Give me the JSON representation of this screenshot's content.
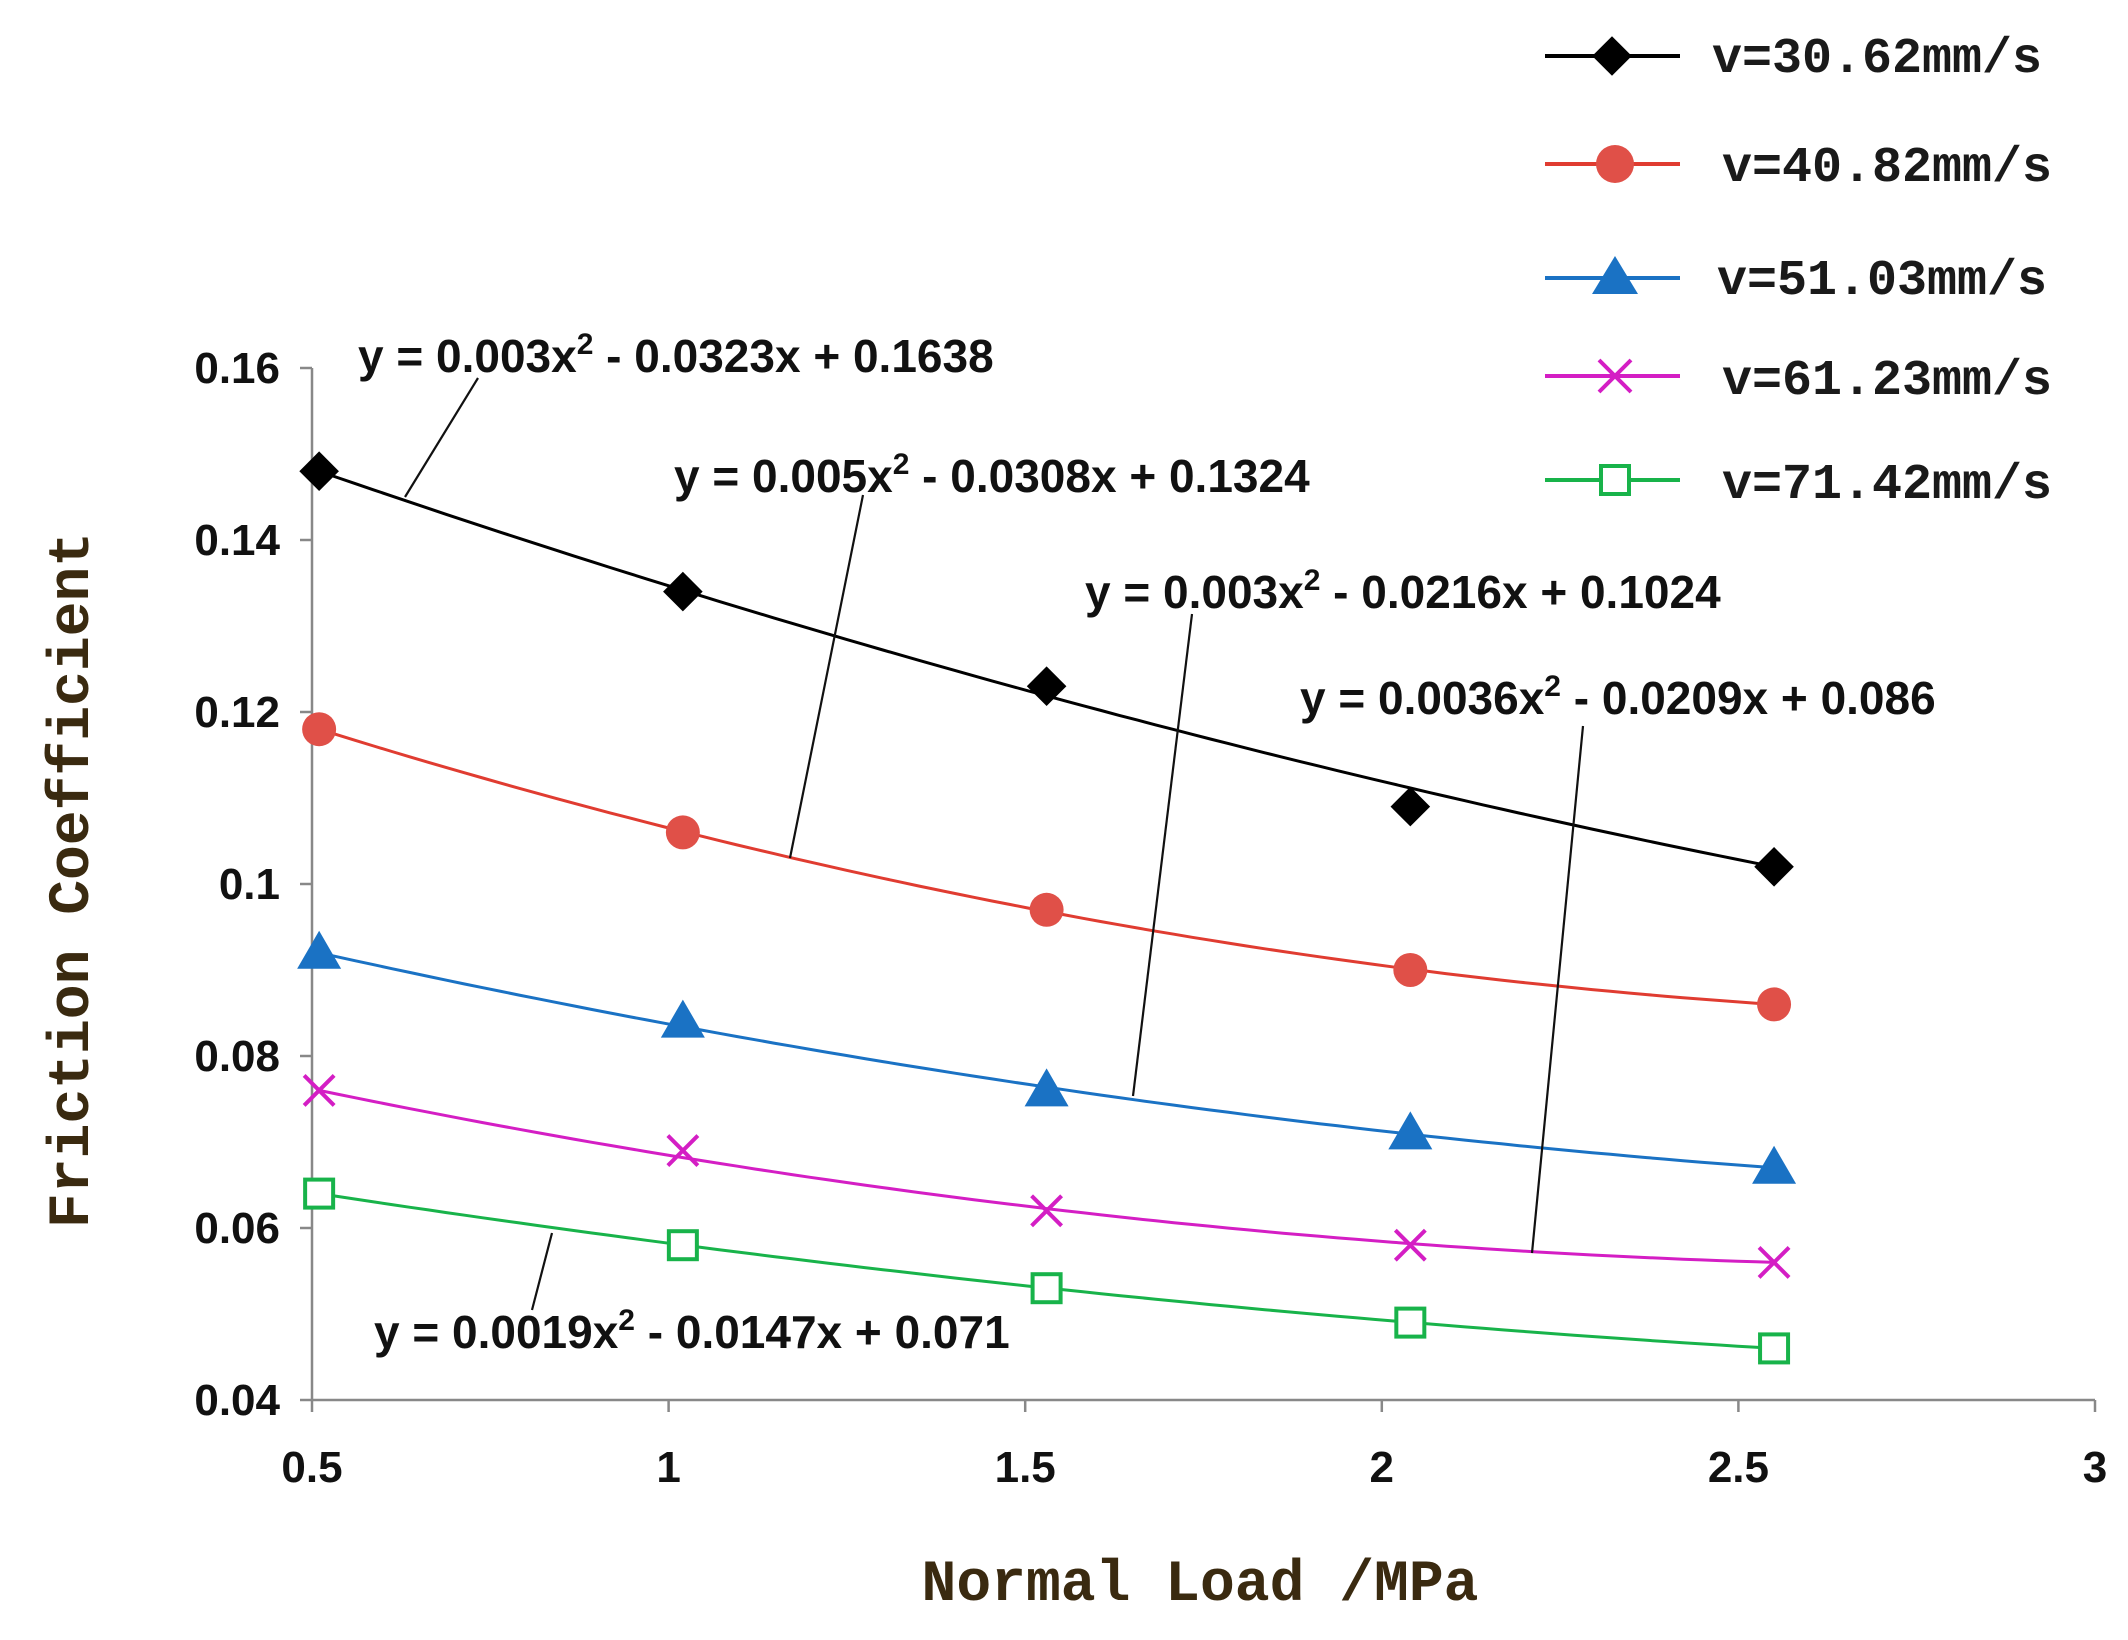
{
  "chart_data": {
    "type": "line",
    "title": "",
    "xlabel": "Normal Load /MPa",
    "ylabel": "Friction Coefficient",
    "xlim": [
      0.5,
      3
    ],
    "ylim": [
      0.04,
      0.16
    ],
    "xticks": [
      0.5,
      1,
      1.5,
      2,
      2.5,
      3
    ],
    "yticks": [
      0.04,
      0.06,
      0.08,
      0.1,
      0.12,
      0.14,
      0.16
    ],
    "xtick_labels": [
      "0.5",
      "1",
      "1.5",
      "2",
      "2.5",
      "3"
    ],
    "ytick_labels": [
      "0.04",
      "0.06",
      "0.08",
      "0.1",
      "0.12",
      "0.14",
      "0.16"
    ],
    "grid": false,
    "legend_position": "top-right",
    "x": [
      0.51,
      1.02,
      1.53,
      2.04,
      2.55
    ],
    "series": [
      {
        "name": "v=30.62mm/s",
        "color": "#000000",
        "marker": "diamond",
        "values": [
          0.148,
          0.134,
          0.123,
          0.109,
          0.102
        ],
        "fit": {
          "a": 0.003,
          "b": -0.0323,
          "c": 0.1638
        },
        "equation": "y = 0.003x² - 0.0323x + 0.1638"
      },
      {
        "name": "v=40.82mm/s",
        "color": "#e03c31",
        "marker": "circle",
        "values": [
          0.118,
          0.106,
          0.097,
          0.09,
          0.086
        ],
        "fit": {
          "a": 0.005,
          "b": -0.0308,
          "c": 0.1324
        },
        "equation": "y = 0.005x² - 0.0308x + 0.1324"
      },
      {
        "name": "v=51.03mm/s",
        "color": "#1a72c4",
        "marker": "triangle",
        "values": [
          0.092,
          0.084,
          0.076,
          0.071,
          0.067
        ],
        "fit": {
          "a": 0.003,
          "b": -0.0216,
          "c": 0.1024
        },
        "equation": "y = 0.003x² - 0.0216x + 0.1024"
      },
      {
        "name": "v=61.23mm/s",
        "color": "#d41ec4",
        "marker": "x",
        "values": [
          0.076,
          0.069,
          0.062,
          0.058,
          0.056
        ],
        "fit": {
          "a": 0.0036,
          "b": -0.0209,
          "c": 0.086
        },
        "equation": "y = 0.0036x² - 0.0209x + 0.086"
      },
      {
        "name": "v=71.42mm/s",
        "color": "#18b34a",
        "marker": "square",
        "values": [
          0.064,
          0.058,
          0.053,
          0.049,
          0.046
        ],
        "fit": {
          "a": 0.0019,
          "b": -0.0147,
          "c": 0.071
        },
        "equation": "y = 0.0019x² - 0.0147x + 0.071"
      }
    ]
  }
}
